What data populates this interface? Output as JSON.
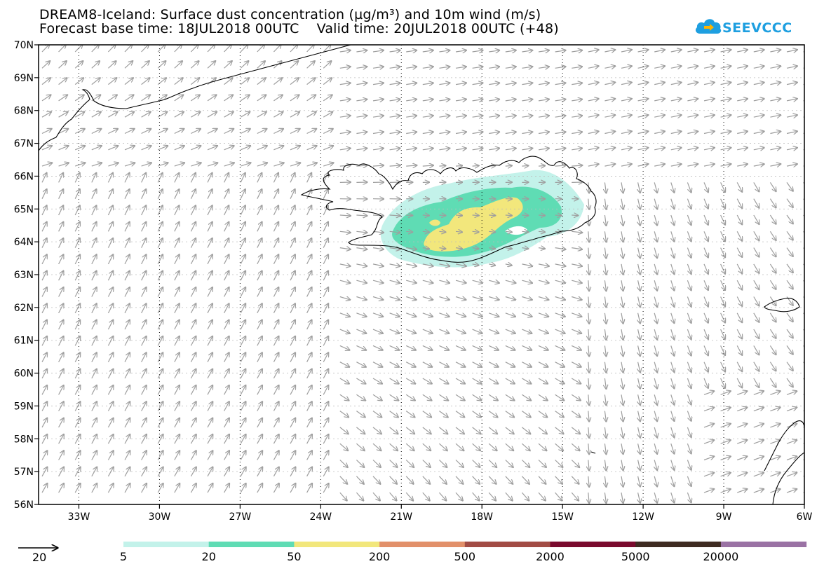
{
  "title": {
    "line1": "DREAM8-Iceland: Surface dust concentration (µg/m³) and 10m wind (m/s)",
    "line2": "Forecast base time: 18JUL2018 00UTC    Valid time: 20JUL2018 00UTC (+48)"
  },
  "logo": {
    "text": "SEEVCCC",
    "icon": "cloud-arrow-icon",
    "color": "#1e9fe0"
  },
  "map": {
    "lon_range": [
      -34.5,
      -6
    ],
    "lat_range": [
      56,
      70
    ],
    "lat_labels": [
      "70N",
      "69N",
      "68N",
      "67N",
      "66N",
      "65N",
      "64N",
      "63N",
      "62N",
      "61N",
      "60N",
      "59N",
      "58N",
      "57N",
      "56N"
    ],
    "lon_labels": [
      "33W",
      "30W",
      "27W",
      "24W",
      "21W",
      "18W",
      "15W",
      "12W",
      "9W",
      "6W"
    ],
    "grid": "dotted",
    "coastline_color": "#000000",
    "wind_arrow_color": "#9e9e9e"
  },
  "legend": {
    "colors": [
      "#c3f2ea",
      "#5fdcb4",
      "#f2e77c",
      "#e2906a",
      "#a24c45",
      "#7a0a2e",
      "#3f2b22",
      "#9a72a4"
    ],
    "labels": [
      "5",
      "20",
      "50",
      "200",
      "500",
      "2000",
      "5000",
      "20000"
    ]
  },
  "wind_reference": {
    "label": "20"
  }
}
